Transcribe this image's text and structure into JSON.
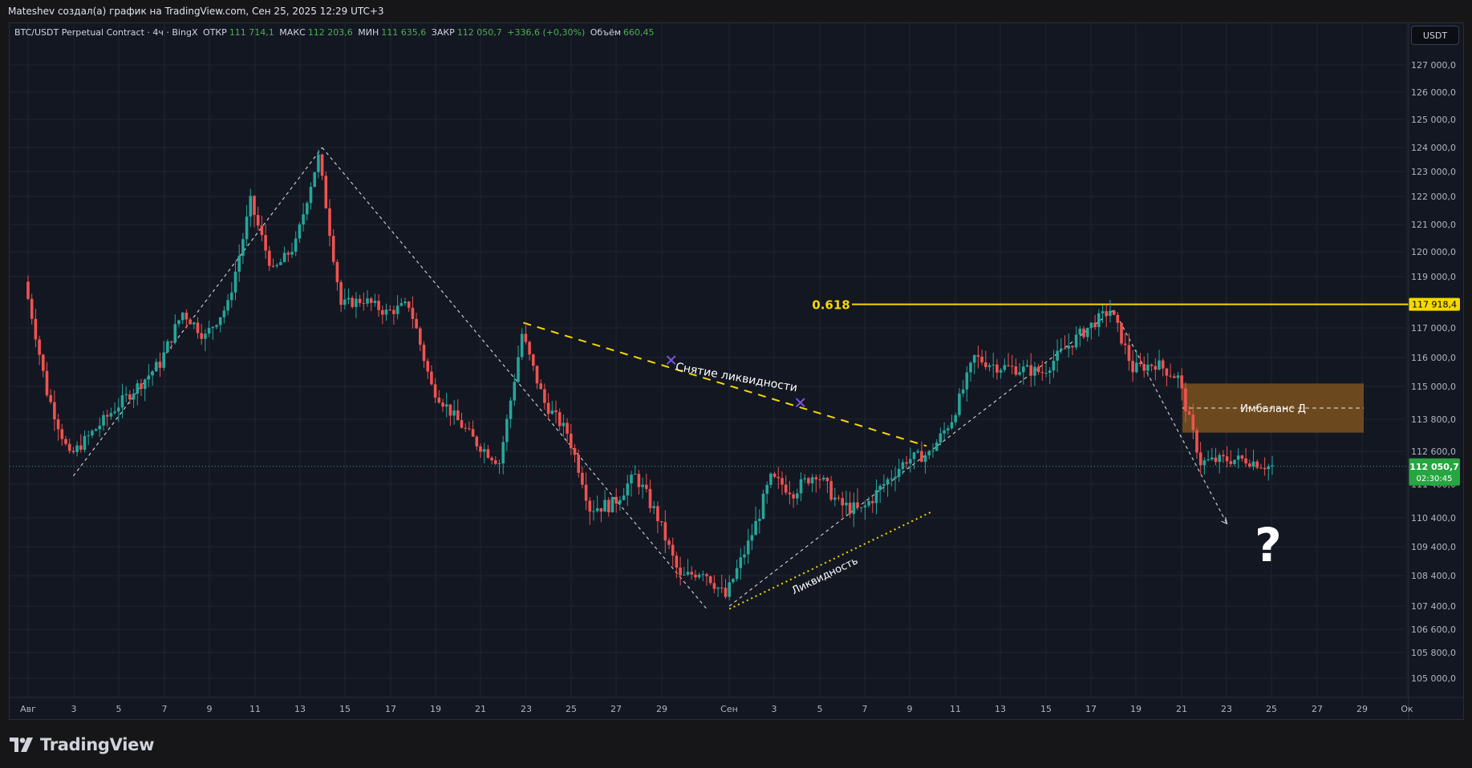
{
  "header": {
    "attribution": "Mateshev создал(а) график на TradingView.com, Сен 25, 2025 12:29 UTC+3"
  },
  "legend": {
    "symbol": "BTC/USDT Perpetual Contract · 4ч · BingX",
    "open_label": "ОТКР",
    "open": "111 714,1",
    "high_label": "МАКС",
    "high": "112 203,6",
    "low_label": "МИН",
    "low": "111 635,6",
    "close_label": "ЗАКР",
    "close": "112 050,7",
    "change": "+336,6 (+0,30%)",
    "volume_label": "Объём",
    "volume": "660,45"
  },
  "toolbar": {
    "currency": "USDT"
  },
  "footer": {
    "brand": "TradingView"
  },
  "colors": {
    "up": "#26a69a",
    "down": "#ef5350",
    "background": "#131722",
    "grid": "#1f2433",
    "fib": "#f5d800",
    "badge_green": "#26a641",
    "imbalance": "#8a5a1c",
    "marker": "#7b55e0"
  },
  "annotations": {
    "fib_label": "0.618",
    "fib_price": "117 918,4",
    "liquidity_sweep": "Снятие ликвидности",
    "liquidity": "Ликвидность",
    "imbalance": "Имбаланс Д",
    "question": "?",
    "marker_symbol": "✕"
  },
  "price_badge": {
    "price": "112 050,7",
    "timer": "02:30:45"
  },
  "chart_data": {
    "type": "candlestick",
    "symbol": "BTC/USDT Perpetual Contract",
    "interval": "4ч",
    "y_axis_ticks": [
      "127 000,0",
      "126 000,0",
      "125 000,0",
      "124 000,0",
      "123 000,0",
      "122 000,0",
      "121 000,0",
      "120 000,0",
      "119 000,0",
      "117 000,0",
      "116 000,0",
      "115 000,0",
      "113 800,0",
      "112 600,0",
      "111 400,0",
      "110 400,0",
      "109 400,0",
      "108 400,0",
      "107 400,0",
      "106 600,0",
      "105 800,0",
      "105 000,0"
    ],
    "x_axis_ticks": [
      "Авг",
      "3",
      "5",
      "7",
      "9",
      "11",
      "13",
      "15",
      "17",
      "19",
      "21",
      "23",
      "25",
      "27",
      "29",
      "Сен",
      "3",
      "5",
      "7",
      "9",
      "11",
      "13",
      "15",
      "17",
      "19",
      "21",
      "23",
      "25",
      "27",
      "29",
      "Ок"
    ],
    "last_price": 112050.7,
    "fib_level": 117918.4,
    "imbalance_zone": [
      113300,
      115100
    ],
    "swing_points": [
      {
        "date": "Авг 3",
        "price": 111700
      },
      {
        "date": "Авг 14",
        "price": 124000
      },
      {
        "date": "Авг 31",
        "price": 107300
      },
      {
        "date": "Сен 1",
        "price": 107400
      },
      {
        "date": "Сен 18",
        "price": 117700
      },
      {
        "date": "Сен 23",
        "price": 110200
      }
    ],
    "price_path": [
      [
        "Авг 1",
        118800
      ],
      [
        "Авг 2",
        114800
      ],
      [
        "Авг 3",
        112400
      ],
      [
        "Авг 5",
        114200
      ],
      [
        "Авг 7",
        115800
      ],
      [
        "Авг 8",
        117600
      ],
      [
        "Авг 9",
        116700
      ],
      [
        "Авг 10",
        117900
      ],
      [
        "Авг 11",
        121800
      ],
      [
        "Авг 12",
        119200
      ],
      [
        "Авг 13",
        120300
      ],
      [
        "Авг 14",
        123600
      ],
      [
        "Авг 15",
        117900
      ],
      [
        "Авг 16",
        118100
      ],
      [
        "Авг 17",
        117600
      ],
      [
        "Авг 18",
        117900
      ],
      [
        "Авг 19",
        115000
      ],
      [
        "Авг 20",
        113900
      ],
      [
        "Авг 21",
        112900
      ],
      [
        "Авг 22",
        112200
      ],
      [
        "Авг 23",
        116800
      ],
      [
        "Авг 24",
        114400
      ],
      [
        "Авг 25",
        113300
      ],
      [
        "Авг 26",
        110700
      ],
      [
        "Авг 27",
        110800
      ],
      [
        "Авг 28",
        111700
      ],
      [
        "Авг 29",
        110400
      ],
      [
        "Авг 30",
        108300
      ],
      [
        "Авг 31",
        108600
      ],
      [
        "Сен 1",
        107700
      ],
      [
        "Сен 2",
        109500
      ],
      [
        "Сен 3",
        111600
      ],
      [
        "Сен 4",
        111200
      ],
      [
        "Сен 5",
        111800
      ],
      [
        "Сен 6",
        110800
      ],
      [
        "Сен 7",
        110600
      ],
      [
        "Сен 8",
        111400
      ],
      [
        "Сен 9",
        112300
      ],
      [
        "Сен 10",
        112500
      ],
      [
        "Сен 11",
        113800
      ],
      [
        "Сен 12",
        116000
      ],
      [
        "Сен 13",
        115700
      ],
      [
        "Сен 14",
        115600
      ],
      [
        "Сен 15",
        115500
      ],
      [
        "Сен 16",
        116300
      ],
      [
        "Сен 17",
        117000
      ],
      [
        "Сен 18",
        117700
      ],
      [
        "Сен 19",
        115600
      ],
      [
        "Сен 20",
        115800
      ],
      [
        "Сен 21",
        115300
      ],
      [
        "Сен 22",
        112200
      ],
      [
        "Сен 23",
        112300
      ],
      [
        "Сен 24",
        112300
      ],
      [
        "Сен 25",
        112050
      ]
    ]
  }
}
